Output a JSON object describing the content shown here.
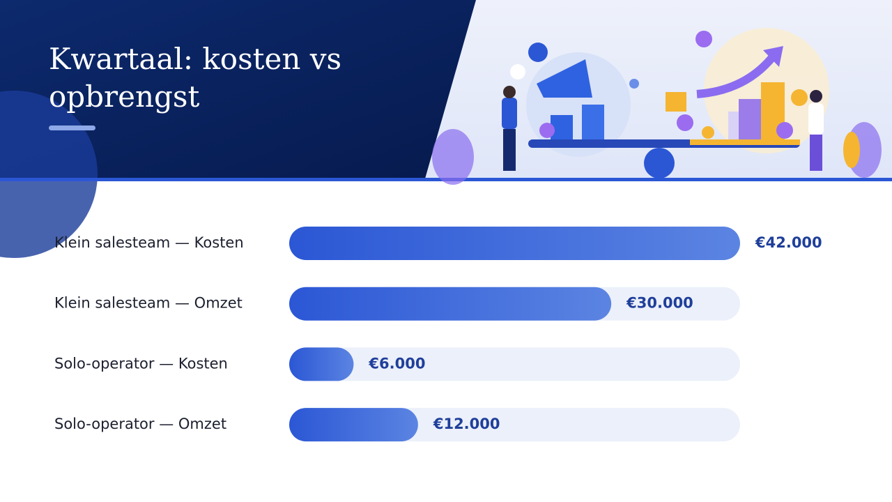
{
  "chart_data": {
    "type": "bar",
    "orientation": "horizontal",
    "title": "Kwartaal: kosten vs opbrengst",
    "categories": [
      "Klein salesteam — Kosten",
      "Klein salesteam — Omzet",
      "Solo-operator — Kosten",
      "Solo-operator — Omzet"
    ],
    "values": [
      42000,
      30000,
      6000,
      12000
    ],
    "value_labels": [
      "€42.000",
      "€30.000",
      "€6.000",
      "€12.000"
    ],
    "color": "#2b57d5",
    "xlim": [
      0,
      42000
    ]
  }
}
